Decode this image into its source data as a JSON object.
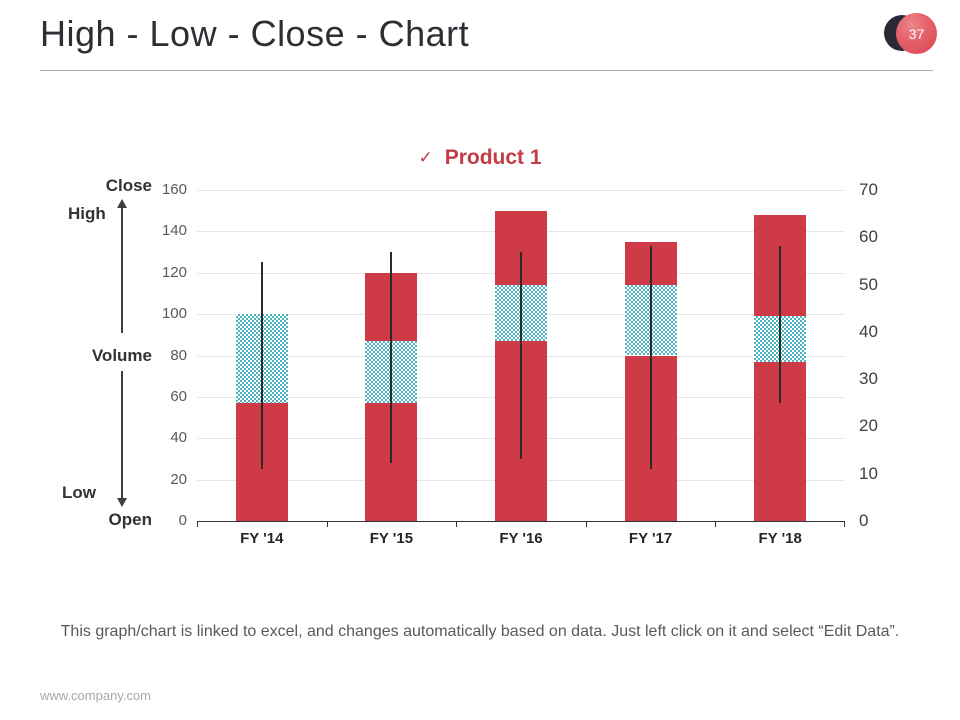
{
  "slide": {
    "title": "High - Low - Close - Chart",
    "page_number": "37",
    "note": "This graph/chart is linked to excel, and changes automatically based on data. Just left click on it and select “Edit Data”.",
    "footer": "www.company.com"
  },
  "legend": {
    "check_icon": "✓",
    "label": "Product 1"
  },
  "annotations": {
    "close": "Close",
    "high": "High",
    "volume": "Volume",
    "low": "Low",
    "open": "Open"
  },
  "colors": {
    "bar_red": "#ce3b46",
    "volume_teal": "#4db4c1",
    "hilo_line": "#2a2a2a",
    "legend_red": "#c23b45",
    "badge_dark": "#2b2b35",
    "badge_red": "#d8454f",
    "gridline": "#e7e7e7",
    "axis_line": "#333333"
  },
  "chart_data": {
    "type": "bar",
    "subtype": "stacked high-low-close stock chart with volume",
    "title": "Product 1",
    "categories": [
      "FY '14",
      "FY '15",
      "FY '16",
      "FY '17",
      "FY '18"
    ],
    "series": [
      {
        "name": "Open (lower red segment)",
        "values": [
          57,
          57,
          87,
          80,
          77
        ]
      },
      {
        "name": "Volume (checkered segment)",
        "values": [
          43,
          30,
          27,
          34,
          22
        ]
      },
      {
        "name": "Close (upper red segment)",
        "values": [
          0,
          33,
          36,
          21,
          49
        ]
      }
    ],
    "bar_totals": [
      100,
      120,
      150,
      135,
      148
    ],
    "hilo_lines": [
      {
        "low": 25,
        "high": 125
      },
      {
        "low": 28,
        "high": 130
      },
      {
        "low": 30,
        "high": 130
      },
      {
        "low": 25,
        "high": 133
      },
      {
        "low": 57,
        "high": 133
      }
    ],
    "left_axis": {
      "min": 0,
      "max": 160,
      "step": 20,
      "ticks": [
        0,
        20,
        40,
        60,
        80,
        100,
        120,
        140,
        160
      ]
    },
    "right_axis": {
      "min": 0,
      "max": 70,
      "step": 10,
      "ticks": [
        0,
        10,
        20,
        30,
        40,
        50,
        60,
        70
      ]
    },
    "grid": true,
    "legend_position": "top-center",
    "xlabel": "",
    "ylabel": ""
  }
}
